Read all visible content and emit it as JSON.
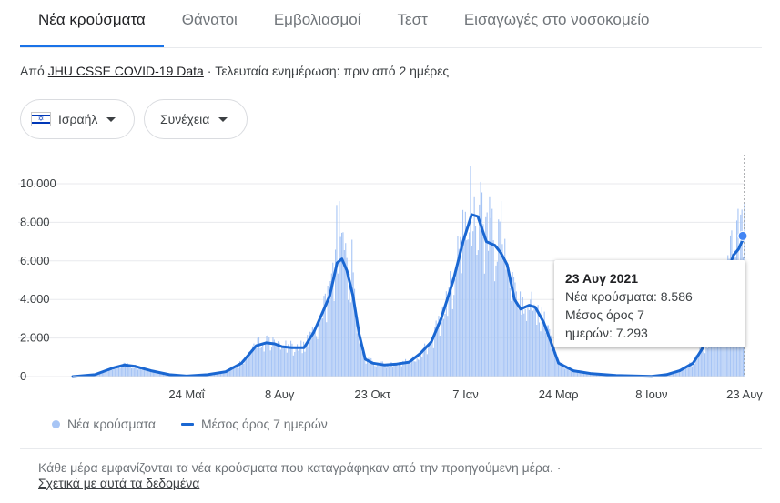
{
  "tabs": [
    {
      "label": "Νέα κρούσματα",
      "active": true
    },
    {
      "label": "Θάνατοι",
      "active": false
    },
    {
      "label": "Εμβολιασμοί",
      "active": false
    },
    {
      "label": "Τεστ",
      "active": false
    },
    {
      "label": "Εισαγωγές στο νοσοκομείο",
      "active": false
    }
  ],
  "source": {
    "prefix": "Από ",
    "link": "JHU CSSE COVID-19 Data",
    "suffix": " · Τελευταία ενημέρωση: πριν από 2 ημέρες"
  },
  "filters": {
    "country": "Ισραήλ",
    "country_icon": "israel-flag-icon",
    "range": "Συνέχεια"
  },
  "tooltip": {
    "date": "23 Αυγ 2021",
    "cases_line": "Νέα κρούσματα: 8.586",
    "avg_line1": "Μέσος όρος 7",
    "avg_line2": "ημερών: 7.293"
  },
  "legend": {
    "bars": "Νέα κρούσματα",
    "line": "Μέσος όρος 7 ημερών"
  },
  "footer": {
    "note": "Κάθε μέρα εμφανίζονται τα νέα κρούσματα που καταγράφηκαν από την προηγούμενη μέρα.  ·",
    "link": "Σχετικά με αυτά τα δεδομένα"
  },
  "colors": {
    "bars": "#a7c5f5",
    "line": "#1a67d2",
    "accent": "#1a73e8"
  },
  "chart_data": {
    "type": "bar",
    "x_start": "2020-02-21",
    "x_end": "2021-08-23",
    "ylim": [
      0,
      10000
    ],
    "yticks": [
      "0",
      "2.000",
      "4.000",
      "6.000",
      "8.000",
      "10.000"
    ],
    "ytick_values": [
      0,
      2000,
      4000,
      6000,
      8000,
      10000
    ],
    "xticks": [
      {
        "label": "24 Μαΐ",
        "date": "2020-05-24"
      },
      {
        "label": "8 Αυγ",
        "date": "2020-08-08"
      },
      {
        "label": "23 Οκτ",
        "date": "2020-10-23"
      },
      {
        "label": "7 Ιαν",
        "date": "2021-01-07"
      },
      {
        "label": "24 Μαρ",
        "date": "2021-03-24"
      },
      {
        "label": "8 Ιουν",
        "date": "2021-06-08"
      },
      {
        "label": "23 Αυγ",
        "date": "2021-08-23"
      }
    ],
    "grid": true,
    "series": [
      {
        "name": "Νέα κρούσματα",
        "style": "bars"
      },
      {
        "name": "Μέσος όρος 7 ημερών",
        "style": "line"
      }
    ],
    "moving_average_points": [
      {
        "date": "2020-02-21",
        "value": 0
      },
      {
        "date": "2020-03-10",
        "value": 100
      },
      {
        "date": "2020-03-25",
        "value": 450
      },
      {
        "date": "2020-04-03",
        "value": 600
      },
      {
        "date": "2020-04-12",
        "value": 530
      },
      {
        "date": "2020-04-25",
        "value": 300
      },
      {
        "date": "2020-05-10",
        "value": 100
      },
      {
        "date": "2020-05-24",
        "value": 30
      },
      {
        "date": "2020-06-10",
        "value": 100
      },
      {
        "date": "2020-06-25",
        "value": 250
      },
      {
        "date": "2020-07-08",
        "value": 700
      },
      {
        "date": "2020-07-20",
        "value": 1600
      },
      {
        "date": "2020-07-28",
        "value": 1750
      },
      {
        "date": "2020-08-04",
        "value": 1700
      },
      {
        "date": "2020-08-10",
        "value": 1550
      },
      {
        "date": "2020-08-18",
        "value": 1500
      },
      {
        "date": "2020-08-28",
        "value": 1500
      },
      {
        "date": "2020-09-05",
        "value": 2300
      },
      {
        "date": "2020-09-12",
        "value": 3300
      },
      {
        "date": "2020-09-18",
        "value": 4200
      },
      {
        "date": "2020-09-24",
        "value": 5900
      },
      {
        "date": "2020-09-28",
        "value": 6100
      },
      {
        "date": "2020-10-02",
        "value": 5500
      },
      {
        "date": "2020-10-07",
        "value": 4200
      },
      {
        "date": "2020-10-12",
        "value": 2200
      },
      {
        "date": "2020-10-17",
        "value": 900
      },
      {
        "date": "2020-10-23",
        "value": 700
      },
      {
        "date": "2020-11-02",
        "value": 600
      },
      {
        "date": "2020-11-12",
        "value": 650
      },
      {
        "date": "2020-11-22",
        "value": 750
      },
      {
        "date": "2020-12-01",
        "value": 1200
      },
      {
        "date": "2020-12-10",
        "value": 1800
      },
      {
        "date": "2020-12-18",
        "value": 3000
      },
      {
        "date": "2020-12-28",
        "value": 5000
      },
      {
        "date": "2021-01-05",
        "value": 7000
      },
      {
        "date": "2021-01-12",
        "value": 8400
      },
      {
        "date": "2021-01-17",
        "value": 8300
      },
      {
        "date": "2021-01-24",
        "value": 7000
      },
      {
        "date": "2021-01-31",
        "value": 6800
      },
      {
        "date": "2021-02-05",
        "value": 6400
      },
      {
        "date": "2021-02-10",
        "value": 5800
      },
      {
        "date": "2021-02-16",
        "value": 4000
      },
      {
        "date": "2021-02-21",
        "value": 3500
      },
      {
        "date": "2021-02-28",
        "value": 3700
      },
      {
        "date": "2021-03-05",
        "value": 3600
      },
      {
        "date": "2021-03-12",
        "value": 2800
      },
      {
        "date": "2021-03-24",
        "value": 700
      },
      {
        "date": "2021-04-05",
        "value": 300
      },
      {
        "date": "2021-04-20",
        "value": 150
      },
      {
        "date": "2021-05-10",
        "value": 60
      },
      {
        "date": "2021-06-08",
        "value": 15
      },
      {
        "date": "2021-06-20",
        "value": 100
      },
      {
        "date": "2021-07-01",
        "value": 300
      },
      {
        "date": "2021-07-12",
        "value": 700
      },
      {
        "date": "2021-07-22",
        "value": 1700
      },
      {
        "date": "2021-07-31",
        "value": 3000
      },
      {
        "date": "2021-08-08",
        "value": 5200
      },
      {
        "date": "2021-08-14",
        "value": 6300
      },
      {
        "date": "2021-08-18",
        "value": 6600
      },
      {
        "date": "2021-08-23",
        "value": 7293
      }
    ],
    "daily_spikes": [
      {
        "date": "2020-04-02",
        "value": 1150
      },
      {
        "date": "2020-07-22",
        "value": 2050
      },
      {
        "date": "2020-09-23",
        "value": 8900
      },
      {
        "date": "2020-09-25",
        "value": 9100
      },
      {
        "date": "2020-10-01",
        "value": 7500
      },
      {
        "date": "2020-10-06",
        "value": 7100
      },
      {
        "date": "2021-01-10",
        "value": 10900
      },
      {
        "date": "2021-01-13",
        "value": 11400
      },
      {
        "date": "2021-01-19",
        "value": 10100
      },
      {
        "date": "2021-01-26",
        "value": 9300
      },
      {
        "date": "2021-02-05",
        "value": 9100
      },
      {
        "date": "2021-03-02",
        "value": 4400
      },
      {
        "date": "2021-08-17",
        "value": 8700
      },
      {
        "date": "2021-08-19",
        "value": 8400
      },
      {
        "date": "2021-08-23",
        "value": 8586
      }
    ],
    "selected_point": {
      "date": "2021-08-23",
      "cases": 8586,
      "avg": 7293
    }
  }
}
